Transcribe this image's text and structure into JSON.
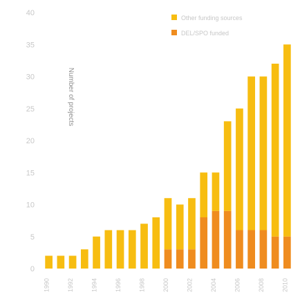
{
  "chart_data": {
    "type": "bar",
    "stacked": true,
    "ylabel": "Number of projects",
    "ylim": [
      0,
      40
    ],
    "yticks": [
      0,
      5,
      10,
      15,
      20,
      25,
      30,
      35,
      40
    ],
    "grid": false,
    "legend_position": "top-right",
    "categories": [
      "1990",
      "1991",
      "1992",
      "1993",
      "1994",
      "1995",
      "1996",
      "1997",
      "1998",
      "1999",
      "2000",
      "2001",
      "2002",
      "2003",
      "2004",
      "2005",
      "2006",
      "2007",
      "2008",
      "2009",
      "2010"
    ],
    "xtick_labels": [
      "1990",
      "",
      "1992",
      "",
      "1994",
      "",
      "1996",
      "",
      "1998",
      "",
      "2000",
      "",
      "2002",
      "",
      "2004",
      "",
      "2006",
      "",
      "2008",
      "",
      "2010"
    ],
    "series": [
      {
        "name": "Other funding sources",
        "color": "#f7bd11",
        "values": [
          2,
          2,
          2,
          3,
          5,
          6,
          6,
          6,
          7,
          8,
          8,
          7,
          8,
          7,
          6,
          14,
          19,
          24,
          24,
          27,
          30
        ]
      },
      {
        "name": "DEL/SPO funded",
        "color": "#ef8c1f",
        "values": [
          0,
          0,
          0,
          0,
          0,
          0,
          0,
          0,
          0,
          0,
          3,
          3,
          3,
          8,
          9,
          9,
          6,
          6,
          6,
          5,
          5
        ]
      }
    ]
  }
}
